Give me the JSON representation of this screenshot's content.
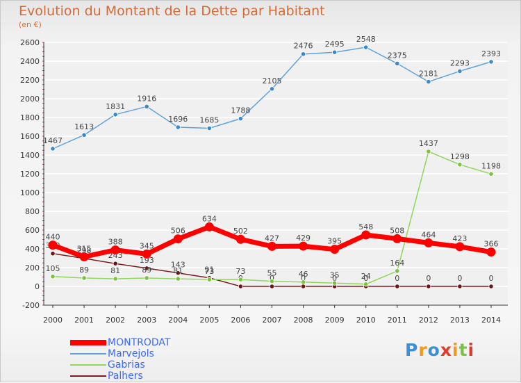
{
  "title": "Evolution du Montant de la Dette par Habitant",
  "subtitle": "(en €)",
  "brand": "Proxiti",
  "colors": {
    "title": "#d46a36",
    "legend_text": "#3a68ff",
    "MONTRODAT": "#ff0000",
    "Marvejols": "#5fa2da",
    "Gabrias": "#8fd65a",
    "Palhers": "#7a1c1c",
    "grid": "#ffffff",
    "axis": "#333333"
  },
  "chart_data": {
    "type": "line",
    "title": "Evolution du Montant de la Dette par Habitant",
    "subtitle": "(en €)",
    "xlabel": "",
    "ylabel": "",
    "x": [
      2000,
      2001,
      2002,
      2003,
      2004,
      2005,
      2006,
      2007,
      2008,
      2009,
      2010,
      2011,
      2012,
      2013,
      2014
    ],
    "ylim": [
      -200,
      2600
    ],
    "yticks": [
      -200,
      0,
      200,
      400,
      600,
      800,
      1000,
      1200,
      1400,
      1600,
      1800,
      2000,
      2200,
      2400,
      2600
    ],
    "grid": true,
    "legend_position": "bottom-left",
    "series": [
      {
        "name": "MONTRODAT",
        "values": [
          440,
          315,
          388,
          345,
          506,
          634,
          502,
          427,
          429,
          395,
          548,
          508,
          464,
          423,
          366
        ]
      },
      {
        "name": "Marvejols",
        "values": [
          1467,
          1613,
          1831,
          1916,
          1696,
          1685,
          1788,
          2105,
          2476,
          2495,
          2548,
          2375,
          2181,
          2293,
          2393
        ]
      },
      {
        "name": "Gabrias",
        "values": [
          105,
          89,
          81,
          89,
          81,
          73,
          73,
          55,
          46,
          35,
          24,
          164,
          1437,
          1298,
          1198
        ]
      },
      {
        "name": "Palhers",
        "values": [
          350,
          298,
          243,
          193,
          143,
          91,
          0,
          0,
          0,
          0,
          0,
          0,
          0,
          0,
          0
        ]
      }
    ]
  }
}
